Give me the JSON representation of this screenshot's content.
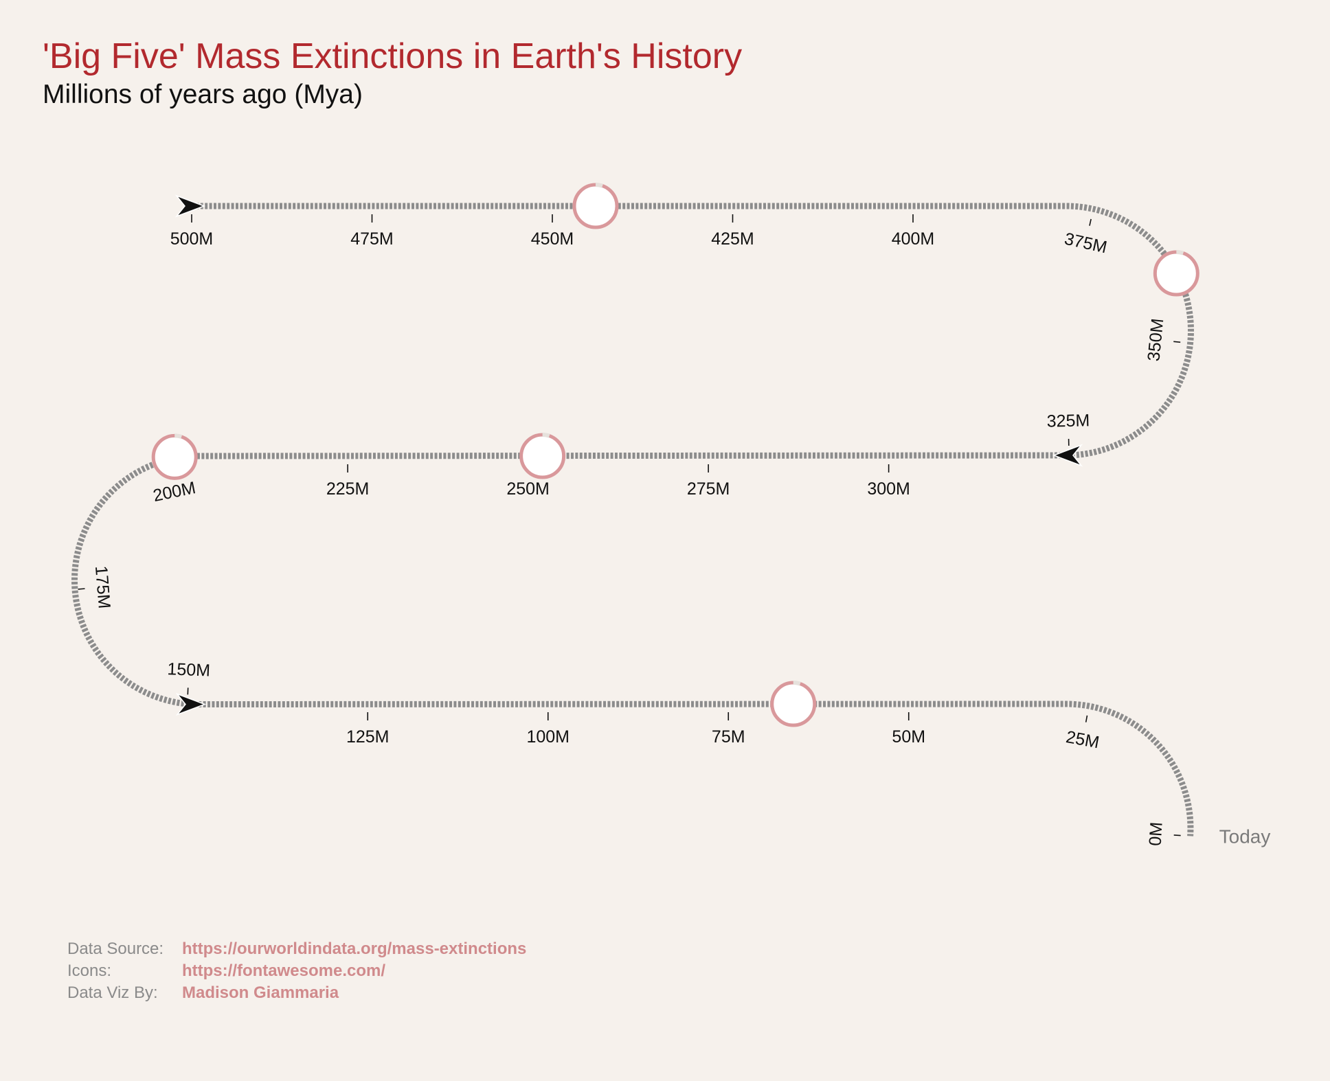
{
  "header": {
    "title": "'Big Five' Mass Extinctions in Earth's History",
    "subtitle": "Millions of years ago (Mya)"
  },
  "chart_data": {
    "type": "timeline",
    "unit": "Mya",
    "domain": [
      500,
      0
    ],
    "tick_labels": [
      "500M",
      "475M",
      "450M",
      "425M",
      "400M",
      "375M",
      "350M",
      "325M",
      "300M",
      "275M",
      "250M",
      "225M",
      "200M",
      "175M",
      "150M",
      "125M",
      "100M",
      "75M",
      "50M",
      "25M",
      "0M"
    ],
    "tick_values": [
      500,
      475,
      450,
      425,
      400,
      375,
      350,
      325,
      300,
      275,
      250,
      225,
      200,
      175,
      150,
      125,
      100,
      75,
      50,
      25,
      0
    ],
    "end_label": "Today",
    "extinctions": [
      {
        "mya": 444
      },
      {
        "mya": 360
      },
      {
        "mya": 252
      },
      {
        "mya": 201
      },
      {
        "mya": 66
      }
    ],
    "colors": {
      "track": "#8c8c8c",
      "ring": "#d9989b",
      "title": "#b2292e",
      "background": "#f6f1ec"
    }
  },
  "credits": [
    {
      "key": "Data Source:",
      "value": "https://ourworldindata.org/mass-extinctions"
    },
    {
      "key": "Icons:",
      "value": "https://fontawesome.com/"
    },
    {
      "key": "Data Viz By:",
      "value": "Madison Giammaria"
    }
  ]
}
